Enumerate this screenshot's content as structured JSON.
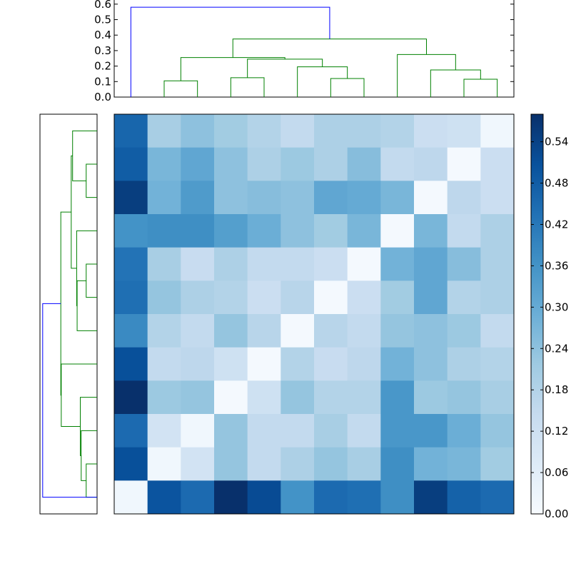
{
  "chart_data": [
    {
      "type": "dendrogram",
      "panel": "top",
      "orientation": "top",
      "ylim": [
        0,
        0.62
      ],
      "yticks": [
        "0.0",
        "0.1",
        "0.2",
        "0.3",
        "0.4",
        "0.5",
        "0.6"
      ],
      "leaf_count": 12,
      "links": [
        {
          "a": 1.5,
          "b": 2.5,
          "h": 0.105,
          "color": "#008000"
        },
        {
          "a": 3.5,
          "b": 4.5,
          "h": 0.125,
          "color": "#008000"
        },
        {
          "a": 6.5,
          "b": 7.5,
          "h": 0.12,
          "color": "#008000"
        },
        {
          "a": 5.5,
          "b": 7.0,
          "h": 0.195,
          "color": "#008000"
        },
        {
          "a": 4.0,
          "b": 6.25,
          "h": 0.245,
          "color": "#008000"
        },
        {
          "a": 2.0,
          "b": 5.125,
          "h": 0.255,
          "color": "#008000"
        },
        {
          "a": 10.5,
          "b": 11.5,
          "h": 0.115,
          "color": "#008000"
        },
        {
          "a": 9.5,
          "b": 11.0,
          "h": 0.175,
          "color": "#008000"
        },
        {
          "a": 8.5,
          "b": 10.25,
          "h": 0.275,
          "color": "#008000"
        },
        {
          "a": 3.5625,
          "b": 9.375,
          "h": 0.375,
          "color": "#008000"
        },
        {
          "a": 0.5,
          "b": 6.47,
          "h": 0.58,
          "color": "#0000ff"
        }
      ]
    },
    {
      "type": "dendrogram",
      "panel": "left",
      "orientation": "left",
      "xlim": [
        0,
        0.62
      ],
      "leaf_count": 12,
      "links": [
        {
          "a": 0.5,
          "b": 1.5,
          "h": 0.12,
          "color": "#008000"
        },
        {
          "a": 1.0,
          "b": 2.5,
          "h": 0.175,
          "color": "#008000"
        },
        {
          "a": 1.75,
          "b": 3.5,
          "h": 0.185,
          "color": "#008000"
        },
        {
          "a": 2.625,
          "b": 4.5,
          "h": 0.395,
          "color": "#008000"
        },
        {
          "a": 6.5,
          "b": 7.5,
          "h": 0.12,
          "color": "#008000"
        },
        {
          "a": 5.5,
          "b": 7.0,
          "h": 0.22,
          "color": "#008000"
        },
        {
          "a": 6.25,
          "b": 8.5,
          "h": 0.225,
          "color": "#008000"
        },
        {
          "a": 9.5,
          "b": 10.5,
          "h": 0.12,
          "color": "#008000"
        },
        {
          "a": 10.0,
          "b": 11.5,
          "h": 0.27,
          "color": "#008000"
        },
        {
          "a": 7.375,
          "b": 10.75,
          "h": 0.285,
          "color": "#008000"
        },
        {
          "a": 3.5625,
          "b": 9.0625,
          "h": 0.4,
          "color": "#008000"
        },
        {
          "a": 6.3125,
          "b": 0.5,
          "h": 0.6,
          "color": "#0000ff"
        }
      ]
    },
    {
      "type": "heatmap",
      "panel": "main",
      "rows": 12,
      "cols": 12,
      "colormap": "Blues",
      "vmin": 0,
      "vmax": 0.58,
      "values": [
        [
          0.46,
          0.2,
          0.24,
          0.21,
          0.18,
          0.15,
          0.19,
          0.19,
          0.18,
          0.13,
          0.12,
          0.02
        ],
        [
          0.48,
          0.27,
          0.31,
          0.24,
          0.19,
          0.22,
          0.19,
          0.25,
          0.15,
          0.16,
          0.01,
          0.13
        ],
        [
          0.55,
          0.28,
          0.34,
          0.24,
          0.25,
          0.24,
          0.31,
          0.3,
          0.27,
          0.01,
          0.16,
          0.13
        ],
        [
          0.36,
          0.37,
          0.37,
          0.33,
          0.29,
          0.24,
          0.21,
          0.27,
          0.01,
          0.27,
          0.15,
          0.19
        ],
        [
          0.43,
          0.2,
          0.14,
          0.19,
          0.15,
          0.15,
          0.13,
          0.01,
          0.28,
          0.31,
          0.25,
          0.19
        ],
        [
          0.44,
          0.23,
          0.19,
          0.18,
          0.13,
          0.17,
          0.01,
          0.13,
          0.21,
          0.31,
          0.18,
          0.19
        ],
        [
          0.38,
          0.18,
          0.15,
          0.23,
          0.17,
          0.01,
          0.17,
          0.15,
          0.23,
          0.24,
          0.22,
          0.15
        ],
        [
          0.51,
          0.15,
          0.16,
          0.12,
          0.01,
          0.18,
          0.14,
          0.16,
          0.28,
          0.24,
          0.19,
          0.18
        ],
        [
          0.58,
          0.22,
          0.23,
          0.01,
          0.12,
          0.23,
          0.18,
          0.18,
          0.35,
          0.22,
          0.23,
          0.2
        ],
        [
          0.45,
          0.11,
          0.02,
          0.23,
          0.15,
          0.15,
          0.2,
          0.15,
          0.35,
          0.35,
          0.29,
          0.23
        ],
        [
          0.51,
          0.02,
          0.11,
          0.23,
          0.15,
          0.19,
          0.23,
          0.2,
          0.37,
          0.28,
          0.27,
          0.21
        ],
        [
          0.02,
          0.5,
          0.45,
          0.58,
          0.52,
          0.36,
          0.45,
          0.44,
          0.37,
          0.55,
          0.47,
          0.45
        ]
      ]
    },
    {
      "type": "colorbar",
      "panel": "right",
      "vmin": 0.0,
      "vmax": 0.58,
      "ticks": [
        "0.00",
        "0.06",
        "0.12",
        "0.18",
        "0.24",
        "0.30",
        "0.36",
        "0.42",
        "0.48",
        "0.54"
      ]
    }
  ]
}
